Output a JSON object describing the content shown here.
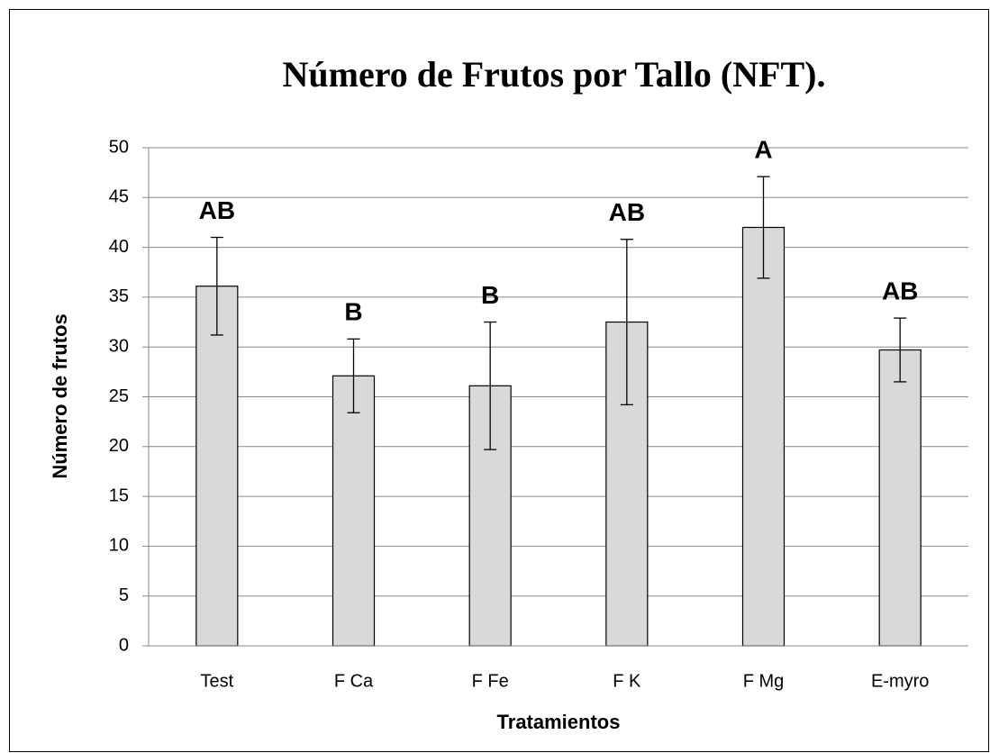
{
  "chart_data": {
    "type": "bar",
    "title": "Número  de Frutos por Tallo (NFT).",
    "x_label": "Tratamientos",
    "y_label": "Número de frutos",
    "categories": [
      "Test",
      "F Ca",
      "F Fe",
      "F K",
      "F Mg",
      "E-myro"
    ],
    "values": [
      36.1,
      27.1,
      26.1,
      32.5,
      42.0,
      29.7
    ],
    "errors": [
      4.9,
      3.7,
      6.4,
      8.3,
      5.1,
      3.2
    ],
    "letters": [
      "AB",
      "B",
      "B",
      "AB",
      "A",
      "AB"
    ],
    "color": "#d9d9d9",
    "ylim": [
      0,
      50
    ],
    "yticks": [
      0,
      5,
      10,
      15,
      20,
      25,
      30,
      35,
      40,
      45,
      50
    ],
    "grid": true
  }
}
